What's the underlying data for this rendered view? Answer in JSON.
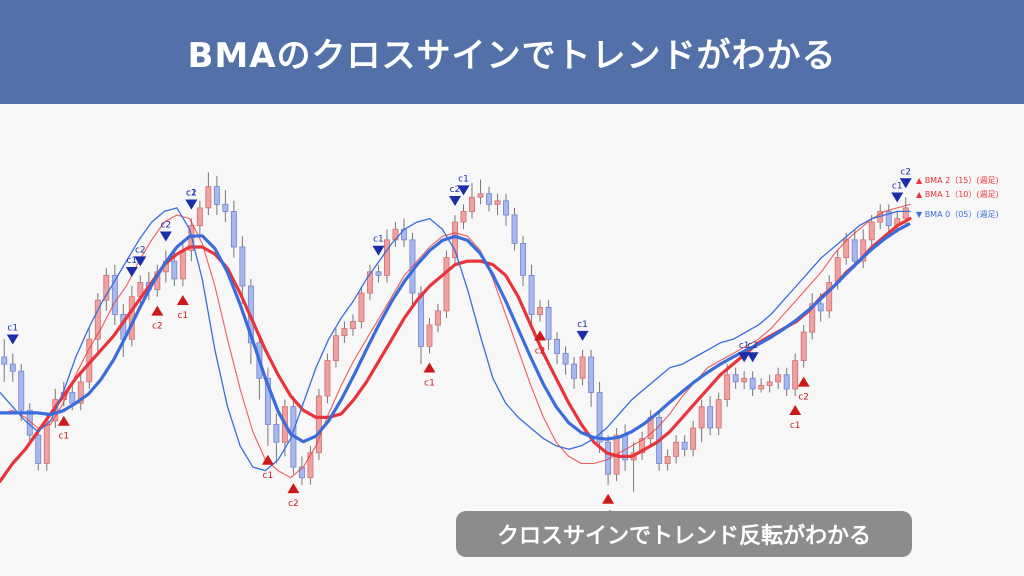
{
  "header": {
    "title": "BMAのクロスサインでトレンドがわかる"
  },
  "caption": {
    "text": "クロスサインでトレンド反転がわかる"
  },
  "colors": {
    "header_bg": "#5470a8",
    "bull_candle": "#f0a0a0",
    "bear_candle": "#a8b8ee",
    "ma_slow": "#e8343a",
    "ma_fast": "#3a6cdc",
    "signal_up": "#cc1a1a",
    "signal_down": "#1a2ea8"
  },
  "legend": [
    {
      "marker": "▲",
      "label": "BMA 2（15）(週足)",
      "color": "#e8343a"
    },
    {
      "marker": "▲",
      "label": "BMA 1（10）(週足)",
      "color": "#e8343a"
    },
    {
      "marker": "▼",
      "label": "BMA 0（05）(週足)",
      "color": "#3a6cdc"
    }
  ],
  "chart_data": {
    "type": "candlestick",
    "title": "",
    "xlabel": "",
    "ylabel": "",
    "ylim": [
      0,
      100
    ],
    "candles": [
      [
        40,
        38,
        45,
        33
      ],
      [
        38,
        36,
        41,
        33
      ],
      [
        36,
        25,
        38,
        22
      ],
      [
        25,
        18,
        27,
        16
      ],
      [
        18,
        10,
        20,
        8
      ],
      [
        10,
        22,
        24,
        8
      ],
      [
        22,
        28,
        31,
        20
      ],
      [
        28,
        30,
        33,
        26
      ],
      [
        30,
        27,
        32,
        25
      ],
      [
        27,
        33,
        36,
        25
      ],
      [
        33,
        45,
        48,
        31
      ],
      [
        45,
        56,
        58,
        41
      ],
      [
        56,
        63,
        65,
        53
      ],
      [
        63,
        52,
        66,
        49
      ],
      [
        52,
        45,
        55,
        40
      ],
      [
        45,
        57,
        60,
        43
      ],
      [
        57,
        61,
        63,
        55
      ],
      [
        61,
        59,
        64,
        56
      ],
      [
        59,
        64,
        66,
        57
      ],
      [
        64,
        67,
        70,
        61
      ],
      [
        67,
        62,
        70,
        60
      ],
      [
        62,
        70,
        73,
        60
      ],
      [
        70,
        77,
        79,
        67
      ],
      [
        77,
        82,
        84,
        74
      ],
      [
        82,
        88,
        92,
        80
      ],
      [
        88,
        83,
        91,
        80
      ],
      [
        83,
        81,
        87,
        78
      ],
      [
        81,
        71,
        84,
        68
      ],
      [
        71,
        60,
        74,
        55
      ],
      [
        60,
        44,
        62,
        38
      ],
      [
        44,
        34,
        46,
        28
      ],
      [
        34,
        21,
        37,
        15
      ],
      [
        21,
        16,
        24,
        10
      ],
      [
        16,
        26,
        28,
        12
      ],
      [
        26,
        9,
        29,
        7
      ],
      [
        9,
        6,
        12,
        4
      ],
      [
        6,
        13,
        15,
        4
      ],
      [
        13,
        29,
        31,
        11
      ],
      [
        29,
        39,
        41,
        27
      ],
      [
        39,
        46,
        48,
        37
      ],
      [
        46,
        48,
        50,
        44
      ],
      [
        48,
        50,
        52,
        46
      ],
      [
        50,
        58,
        60,
        48
      ],
      [
        58,
        64,
        66,
        56
      ],
      [
        64,
        63,
        66,
        61
      ],
      [
        63,
        73,
        76,
        61
      ],
      [
        73,
        76,
        78,
        71
      ],
      [
        76,
        73,
        79,
        71
      ],
      [
        73,
        58,
        75,
        54
      ],
      [
        58,
        43,
        60,
        38
      ],
      [
        43,
        49,
        51,
        41
      ],
      [
        49,
        53,
        55,
        47
      ],
      [
        53,
        68,
        70,
        51
      ],
      [
        68,
        78,
        80,
        66
      ],
      [
        78,
        81,
        83,
        76
      ],
      [
        81,
        85,
        89,
        79
      ],
      [
        85,
        86,
        90,
        83
      ],
      [
        86,
        83,
        88,
        81
      ],
      [
        83,
        84,
        86,
        80
      ],
      [
        84,
        80,
        86,
        77
      ],
      [
        80,
        72,
        82,
        70
      ],
      [
        72,
        63,
        74,
        60
      ],
      [
        63,
        52,
        66,
        48
      ],
      [
        52,
        54,
        56,
        50
      ],
      [
        54,
        45,
        56,
        42
      ],
      [
        45,
        41,
        47,
        38
      ],
      [
        41,
        38,
        43,
        35
      ],
      [
        38,
        34,
        40,
        31
      ],
      [
        34,
        40,
        42,
        32
      ],
      [
        40,
        30,
        42,
        26
      ],
      [
        30,
        16,
        33,
        13
      ],
      [
        16,
        7,
        18,
        4
      ],
      [
        7,
        18,
        20,
        5
      ],
      [
        18,
        11,
        21,
        8
      ],
      [
        11,
        13,
        16,
        2
      ],
      [
        13,
        17,
        19,
        11
      ],
      [
        17,
        23,
        25,
        15
      ],
      [
        23,
        10,
        25,
        8
      ],
      [
        10,
        12,
        14,
        8
      ],
      [
        12,
        16,
        18,
        10
      ],
      [
        16,
        14,
        18,
        12
      ],
      [
        14,
        20,
        22,
        12
      ],
      [
        20,
        26,
        28,
        16
      ],
      [
        26,
        20,
        29,
        18
      ],
      [
        20,
        28,
        30,
        18
      ],
      [
        28,
        35,
        38,
        26
      ],
      [
        35,
        33,
        37,
        31
      ],
      [
        33,
        34,
        36,
        31
      ],
      [
        34,
        31,
        36,
        29
      ],
      [
        31,
        32,
        34,
        30
      ],
      [
        32,
        33,
        35,
        30
      ],
      [
        33,
        35,
        37,
        31
      ],
      [
        35,
        31,
        37,
        29
      ],
      [
        31,
        39,
        41,
        29
      ],
      [
        39,
        47,
        49,
        37
      ],
      [
        47,
        55,
        58,
        45
      ],
      [
        55,
        53,
        58,
        50
      ],
      [
        53,
        61,
        63,
        51
      ],
      [
        61,
        68,
        70,
        59
      ],
      [
        68,
        73,
        75,
        66
      ],
      [
        73,
        67,
        76,
        65
      ],
      [
        67,
        73,
        76,
        65
      ],
      [
        73,
        78,
        80,
        71
      ],
      [
        78,
        81,
        83,
        76
      ],
      [
        81,
        77,
        83,
        75
      ],
      [
        77,
        79,
        81,
        75
      ],
      [
        79,
        82,
        85,
        77
      ]
    ],
    "series": [
      {
        "name": "BMA 2（15）(週足)",
        "values": [
          5,
          10,
          14,
          19,
          24,
          29,
          34,
          38,
          42,
          46,
          51,
          56,
          61,
          66,
          69,
          71,
          71,
          69,
          65,
          58,
          50,
          42,
          35,
          29,
          25,
          23,
          23,
          24,
          28,
          33,
          39,
          45,
          51,
          56,
          60,
          63,
          66,
          67,
          67,
          66,
          63,
          57,
          49,
          41,
          34,
          27,
          21,
          16,
          13,
          12,
          12,
          14,
          16,
          19,
          23,
          27,
          31,
          35,
          38,
          41,
          44,
          46,
          48,
          50,
          53,
          57,
          60,
          64,
          67,
          71,
          74,
          77,
          79
        ]
      },
      {
        "name": "BMA 1（10）(週足)",
        "values": [
          24,
          25,
          23,
          20,
          21,
          27,
          35,
          42,
          48,
          55,
          60,
          67,
          73,
          78,
          80,
          79,
          72,
          60,
          45,
          31,
          19,
          11,
          8,
          6,
          9,
          15,
          24,
          32,
          39,
          45,
          51,
          57,
          63,
          67,
          71,
          74,
          75,
          74,
          70,
          62,
          52,
          42,
          32,
          23,
          16,
          12,
          10,
          10,
          11,
          13,
          15,
          17,
          20,
          24,
          29,
          33,
          37,
          39,
          41,
          43,
          45,
          48,
          52,
          56,
          60,
          64,
          69,
          73,
          76,
          79,
          81,
          82,
          83
        ]
      },
      {
        "name": "BMA 0（05）(週足)",
        "values": [
          30,
          26,
          22,
          19,
          22,
          30,
          40,
          48,
          55,
          61,
          67,
          73,
          78,
          81,
          82,
          76,
          62,
          42,
          26,
          15,
          9,
          8,
          11,
          17,
          27,
          37,
          45,
          51,
          56,
          62,
          67,
          72,
          76,
          78,
          79,
          76,
          70,
          59,
          46,
          34,
          27,
          23,
          20,
          17,
          15,
          14,
          15,
          17,
          20,
          24,
          28,
          31,
          34,
          37,
          38,
          40,
          42,
          44,
          45,
          47,
          49,
          52,
          56,
          60,
          64,
          68,
          71,
          74,
          77,
          79,
          80,
          81,
          81
        ]
      }
    ],
    "signals": [
      {
        "type": "down",
        "label": "c1",
        "x": 1
      },
      {
        "type": "up",
        "label": "c1",
        "x": 5
      },
      {
        "type": "down",
        "label": "c1",
        "x": 10
      },
      {
        "type": "down",
        "label": "c2",
        "x": 11
      },
      {
        "type": "up",
        "label": "c2",
        "x": 12
      },
      {
        "type": "down",
        "label": "c2",
        "x": 13
      },
      {
        "type": "up",
        "label": "c1",
        "x": 14
      },
      {
        "type": "down",
        "label": "c2",
        "x": 15
      },
      {
        "type": "down",
        "label": "c1",
        "x": 15
      },
      {
        "type": "up",
        "label": "c2",
        "x": 23
      },
      {
        "type": "up",
        "label": "c1",
        "x": 21
      },
      {
        "type": "down",
        "label": "c1",
        "x": 30
      },
      {
        "type": "up",
        "label": "c1",
        "x": 34
      },
      {
        "type": "down",
        "label": "c2",
        "x": 36
      },
      {
        "type": "down",
        "label": "c1",
        "x": 37
      },
      {
        "type": "up",
        "label": "c2",
        "x": 43
      },
      {
        "type": "down",
        "label": "c1",
        "x": 46
      },
      {
        "type": "up",
        "label": "c1",
        "x": 48
      },
      {
        "type": "down",
        "label": "c1",
        "x": 59
      },
      {
        "type": "down",
        "label": "c2",
        "x": 60
      },
      {
        "type": "up",
        "label": "c2",
        "x": 64
      },
      {
        "type": "up",
        "label": "c1",
        "x": 63
      },
      {
        "type": "down",
        "label": "c1",
        "x": 71
      },
      {
        "type": "down",
        "label": "c2",
        "x": 72
      }
    ]
  }
}
